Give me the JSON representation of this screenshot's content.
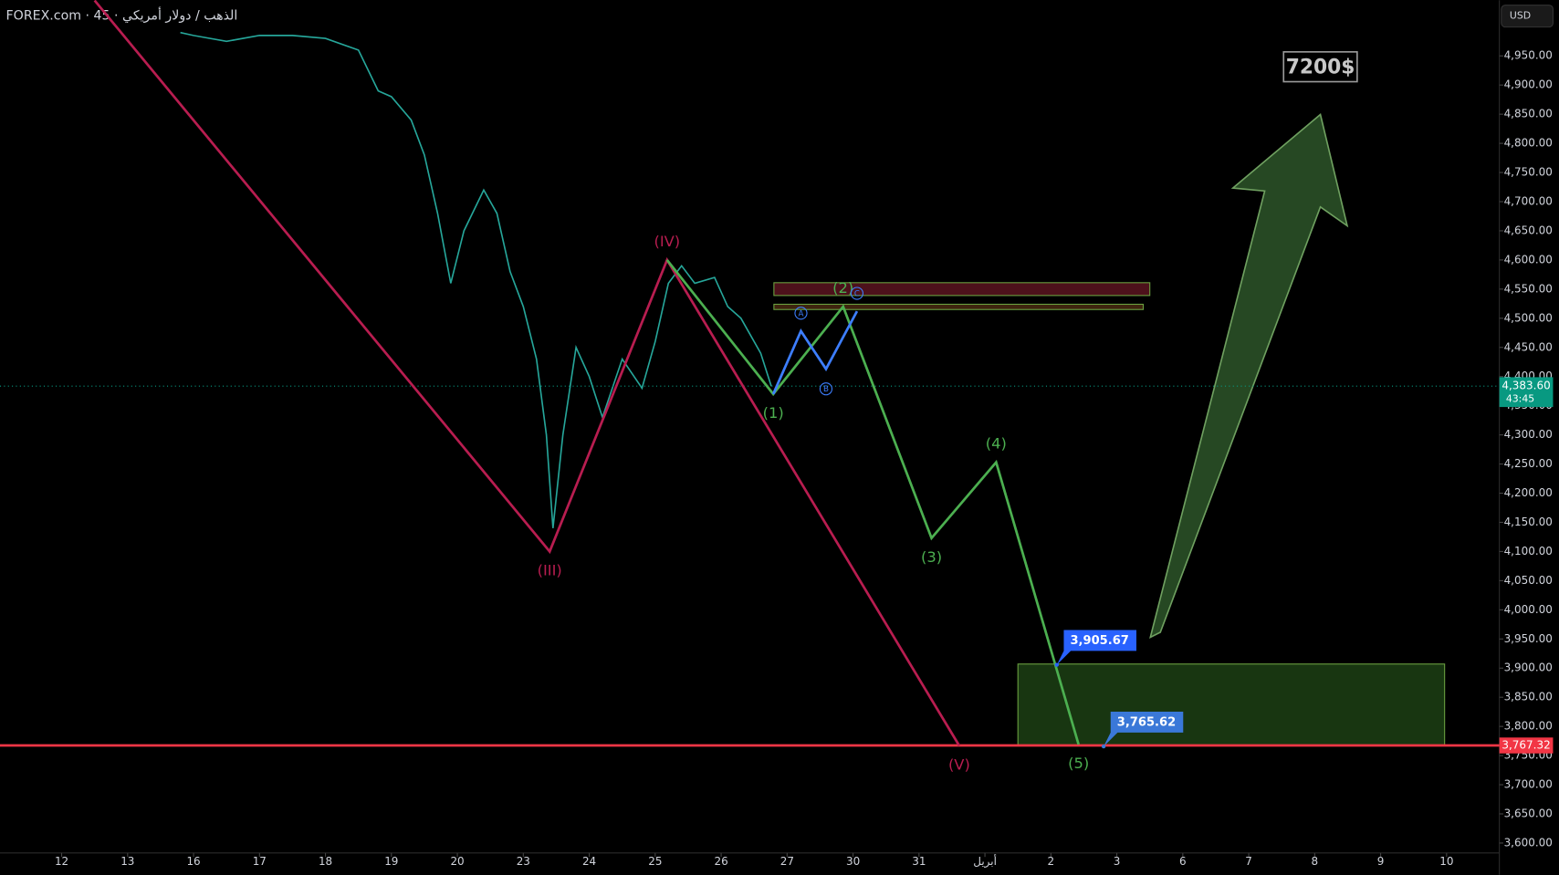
{
  "header": {
    "symbol": "FOREX.com · 45 · الذهب / دولار أمريكي",
    "currency": "USD",
    "target": "7200$"
  },
  "chart_data": {
    "type": "line",
    "color": "#26a69a",
    "x": [
      1.8,
      2.0,
      2.5,
      3.0,
      3.5,
      4.0,
      4.5,
      4.8,
      5.0,
      5.3,
      5.5,
      5.7,
      5.9,
      6.1,
      6.4,
      6.6,
      6.8,
      7.0,
      7.2,
      7.35,
      7.45,
      7.6,
      7.8,
      8.0,
      8.2,
      8.5,
      8.8,
      9.0,
      9.2,
      9.4,
      9.6,
      9.9,
      10.1,
      10.3,
      10.6,
      10.76
    ],
    "values": [
      4990,
      4985,
      4975,
      4985,
      4985,
      4980,
      4960,
      4890,
      4880,
      4840,
      4780,
      4680,
      4560,
      4650,
      4720,
      4680,
      4580,
      4520,
      4430,
      4300,
      4140,
      4300,
      4450,
      4400,
      4330,
      4430,
      4380,
      4460,
      4560,
      4590,
      4560,
      4570,
      4520,
      4500,
      4440,
      4383.6
    ],
    "xlim": [
      -0.935,
      21.8
    ],
    "ylim": [
      3583,
      5045.5
    ],
    "xticks": [
      {
        "value": 0,
        "label": "12"
      },
      {
        "value": 1,
        "label": "13"
      },
      {
        "value": 2,
        "label": "16"
      },
      {
        "value": 3,
        "label": "17"
      },
      {
        "value": 4,
        "label": "18"
      },
      {
        "value": 5,
        "label": "19"
      },
      {
        "value": 6,
        "label": "20"
      },
      {
        "value": 7,
        "label": "23"
      },
      {
        "value": 8,
        "label": "24"
      },
      {
        "value": 9,
        "label": "25"
      },
      {
        "value": 10,
        "label": "26"
      },
      {
        "value": 11,
        "label": "27"
      },
      {
        "value": 12,
        "label": "30"
      },
      {
        "value": 13,
        "label": "31"
      },
      {
        "value": 14,
        "label": "أبريل"
      },
      {
        "value": 15,
        "label": "2"
      },
      {
        "value": 16,
        "label": "3"
      },
      {
        "value": 17,
        "label": "6"
      },
      {
        "value": 18,
        "label": "7"
      },
      {
        "value": 19,
        "label": "8"
      },
      {
        "value": 20,
        "label": "9"
      },
      {
        "value": 21,
        "label": "10"
      }
    ],
    "yticks": [
      {
        "value": 3600,
        "label": "3,600.00"
      },
      {
        "value": 3650,
        "label": "3,650.00"
      },
      {
        "value": 3700,
        "label": "3,700.00"
      },
      {
        "value": 3750,
        "label": "3,750.00"
      },
      {
        "value": 3800,
        "label": "3,800.00"
      },
      {
        "value": 3850,
        "label": "3,850.00"
      },
      {
        "value": 3900,
        "label": "3,900.00"
      },
      {
        "value": 3950,
        "label": "3,950.00"
      },
      {
        "value": 4000,
        "label": "4,000.00"
      },
      {
        "value": 4050,
        "label": "4,050.00"
      },
      {
        "value": 4100,
        "label": "4,100.00"
      },
      {
        "value": 4150,
        "label": "4,150.00"
      },
      {
        "value": 4200,
        "label": "4,200.00"
      },
      {
        "value": 4250,
        "label": "4,250.00"
      },
      {
        "value": 4300,
        "label": "4,300.00"
      },
      {
        "value": 4350,
        "label": "4,350.00"
      },
      {
        "value": 4400,
        "label": "4,400.00"
      },
      {
        "value": 4450,
        "label": "4,450.00"
      },
      {
        "value": 4500,
        "label": "4,500.00"
      },
      {
        "value": 4550,
        "label": "4,550.00"
      },
      {
        "value": 4600,
        "label": "4,600.00"
      },
      {
        "value": 4650,
        "label": "4,650.00"
      },
      {
        "value": 4700,
        "label": "4,700.00"
      },
      {
        "value": 4750,
        "label": "4,750.00"
      },
      {
        "value": 4800,
        "label": "4,800.00"
      },
      {
        "value": 4850,
        "label": "4,850.00"
      },
      {
        "value": 4900,
        "label": "4,900.00"
      },
      {
        "value": 4950,
        "label": "4,950.00"
      }
    ],
    "zones": [
      {
        "x": [
          10.8,
          16.5
        ],
        "values": [
          4561,
          4539
        ],
        "color": "#5a1420"
      },
      {
        "x": [
          10.8,
          16.4
        ],
        "values": [
          4524,
          4515
        ],
        "color": "#4a2a10"
      },
      {
        "x": [
          14.5,
          20.97
        ],
        "values": [
          3907,
          3767
        ],
        "color": "#1c3f14"
      }
    ],
    "waves": [
      {
        "color": "#b81d50",
        "x": [
          0.5,
          7.4,
          9.18,
          13.61
        ],
        "values": [
          5045,
          4100,
          4600,
          3767
        ],
        "labels": [
          null,
          "(III)",
          "(IV)",
          "(V)"
        ]
      },
      {
        "color": "#4caf50",
        "x": [
          9.18,
          10.79,
          11.85,
          13.19,
          14.17,
          15.42
        ],
        "values": [
          4600,
          4370,
          4520,
          4123,
          4253,
          3769
        ],
        "labels": [
          null,
          "(1)",
          "(2)",
          "(3)",
          "(4)",
          "(5)"
        ]
      },
      {
        "color": "#3d7eff",
        "x": [
          10.79,
          11.21,
          11.59,
          12.06
        ],
        "values": [
          4370,
          4478,
          4413,
          4512
        ],
        "labels": [
          null,
          "A",
          "B",
          "C"
        ]
      }
    ],
    "level": {
      "value": 3767.32,
      "label": "3,767.32",
      "color": "#f23645"
    },
    "last_price": {
      "value": 4383.6,
      "label": "4,383.60",
      "countdown": "43:45",
      "color": "#089981"
    },
    "callouts": [
      {
        "x": 15.09,
        "value": 3905.67,
        "label": "3,905.67",
        "color": "#2962ff"
      },
      {
        "x": 15.8,
        "value": 3765.62,
        "label": "3,765.62",
        "color": "#3a78d8"
      }
    ]
  }
}
